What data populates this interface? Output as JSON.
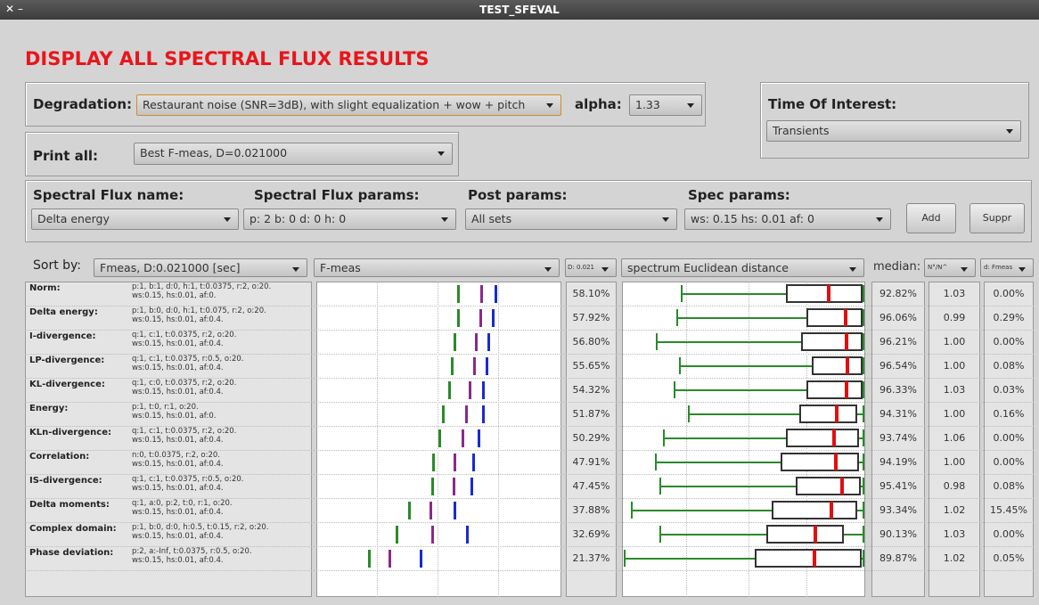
{
  "window_title": "TEST_SFEVAL",
  "title": "DISPLAY ALL SPECTRAL FLUX RESULTS",
  "degradation": {
    "label": "Degradation:",
    "value": "Restaurant noise (SNR=3dB), with slight equalization + wow + pitch"
  },
  "alpha": {
    "label": "alpha:",
    "value": "1.33"
  },
  "time_of_interest": {
    "label": "Time Of Interest:",
    "value": "Transients"
  },
  "print_all": {
    "label": "Print all:",
    "value": "Best F-meas, D=0.021000"
  },
  "spectral_flux_name": {
    "label": "Spectral Flux name:",
    "value": "Delta energy"
  },
  "spectral_flux_params": {
    "label": "Spectral Flux params:",
    "value": "p: 2  b: 0  d: 0  h: 0"
  },
  "post_params": {
    "label": "Post params:",
    "value": "All sets"
  },
  "spec_params": {
    "label": "Spec params:",
    "value": "ws: 0.15  hs: 0.01  af: 0"
  },
  "buttons": [
    "Add",
    "Suppr"
  ],
  "sort_by": {
    "label": "Sort by:",
    "value": "Fmeas, D:0.021000 [sec]"
  },
  "columns": {
    "fmeas": "F-meas",
    "tolerance": "D: 0.021",
    "distance": "spectrum Euclidean distance",
    "median": "median:",
    "ratio": "N°/N^",
    "d": "d: Fmeas"
  },
  "rows": [
    {
      "name": "Norm:",
      "params": [
        "p:1, b:1, d:0, h:1, t:0.0375, r:2, o:20.",
        "ws:0.15, hs:0.01, af:0."
      ],
      "fmeas": "58.10%",
      "median": "92.82%",
      "ratio": "1.03",
      "d": "0.00%"
    },
    {
      "name": "Delta energy:",
      "params": [
        "p:1, b:0, d:0, h:1, t:0.075, r:2, o:20.",
        "ws:0.15, hs:0.01, af:0.4."
      ],
      "fmeas": "57.92%",
      "median": "96.06%",
      "ratio": "0.99",
      "d": "0.29%"
    },
    {
      "name": "I-divergence:",
      "params": [
        "q:1, c:1, t:0.0375, r:2, o:20.",
        "ws:0.15, hs:0.01, af:0.4."
      ],
      "fmeas": "56.80%",
      "median": "96.21%",
      "ratio": "1.00",
      "d": "0.00%"
    },
    {
      "name": "LP-divergence:",
      "params": [
        "q:1, c:1, t:0.0375, r:0.5, o:20.",
        "ws:0.15, hs:0.01, af:0.4."
      ],
      "fmeas": "55.65%",
      "median": "96.54%",
      "ratio": "1.00",
      "d": "0.08%"
    },
    {
      "name": "KL-divergence:",
      "params": [
        "q:1, c:0, t:0.0375, r:2, o:20.",
        "ws:0.15, hs:0.01, af:0.4."
      ],
      "fmeas": "54.32%",
      "median": "96.33%",
      "ratio": "1.03",
      "d": "0.03%"
    },
    {
      "name": "Energy:",
      "params": [
        "p:1, t:0, r:1, o:20.",
        "ws:0.15, hs:0.01, af:0."
      ],
      "fmeas": "51.87%",
      "median": "94.31%",
      "ratio": "1.00",
      "d": "0.16%"
    },
    {
      "name": "KLn-divergence:",
      "params": [
        "q:1, c:1, t:0.0375, r:2, o:20.",
        "ws:0.15, hs:0.01, af:0.4."
      ],
      "fmeas": "50.29%",
      "median": "93.74%",
      "ratio": "1.06",
      "d": "0.00%"
    },
    {
      "name": "Correlation:",
      "params": [
        "n:0, t:0.0375, r:2, o:20.",
        "ws:0.15, hs:0.01, af:0.4."
      ],
      "fmeas": "47.91%",
      "median": "94.19%",
      "ratio": "1.00",
      "d": "0.00%"
    },
    {
      "name": "IS-divergence:",
      "params": [
        "q:1, c:1, t:0.0375, r:0.5, o:20.",
        "ws:0.15, hs:0.01, af:0.4."
      ],
      "fmeas": "47.45%",
      "median": "95.41%",
      "ratio": "0.98",
      "d": "0.08%"
    },
    {
      "name": "Delta moments:",
      "params": [
        "q:1, a:0, p:2, t:0, r:1, o:20.",
        "ws:0.15, hs:0.01, af:0.4."
      ],
      "fmeas": "37.88%",
      "median": "93.34%",
      "ratio": "1.02",
      "d": "15.45%"
    },
    {
      "name": "Complex domain:",
      "params": [
        "p:1, b:0, d:0, h:0.5, t:0.15, r:2, o:20.",
        "ws:0.15, hs:0.01, af:0.4."
      ],
      "fmeas": "32.69%",
      "median": "90.13%",
      "ratio": "1.03",
      "d": "0.00%"
    },
    {
      "name": "Phase deviation:",
      "params": [
        "p:2, a:-Inf, t:0.0375, r:0.5, o:20.",
        "ws:0.15, hs:0.01, af:0.4."
      ],
      "fmeas": "21.37%",
      "median": "89.87%",
      "ratio": "1.02",
      "d": "0.05%"
    }
  ]
}
